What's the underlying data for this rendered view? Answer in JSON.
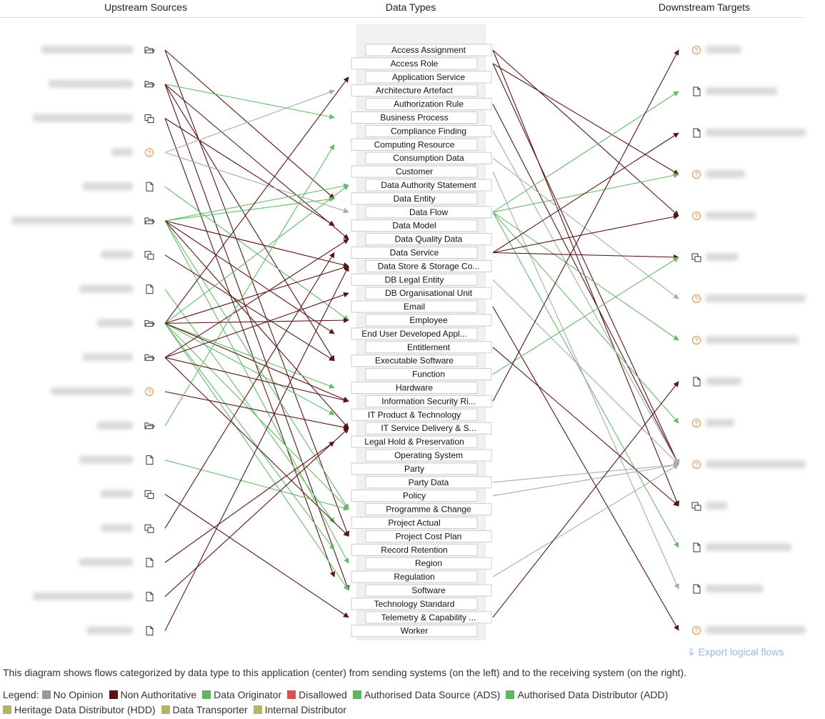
{
  "headers": {
    "upstream": "Upstream Sources",
    "data_types": "Data Types",
    "downstream": "Downstream Targets"
  },
  "colors": {
    "no_opinion": "#999999",
    "non_authoritative": "#5a1414",
    "authoritative": "#66bb6a",
    "disallowed": "#d9534f",
    "olive": "#b3b566"
  },
  "data_types": [
    "Access Assignment",
    "Access Role",
    "Application Service",
    "Architecture Artefact",
    "Authorization Rule",
    "Business Process",
    "Compliance Finding",
    "Computing Resource",
    "Consumption Data",
    "Customer",
    "Data Authority Statement",
    "Data Entity",
    "Data Flow",
    "Data Model",
    "Data Quality Data",
    "Data Service",
    "Data Store & Storage Co...",
    "DB Legal Entity",
    "DB Organisational Unit",
    "Email",
    "Employee",
    "End User Developed Appl...",
    "Entitlement",
    "Executable Software",
    "Function",
    "Hardware",
    "Information Security Ri...",
    "IT Product & Technology",
    "IT Service Delivery & S...",
    "Legal Hold & Preservation",
    "Operating System",
    "Party",
    "Party Data",
    "Policy",
    "Programme & Change",
    "Project Actual",
    "Project Cost Plan",
    "Record Retention",
    "Region",
    "Regulation",
    "Software",
    "Technology Standard",
    "Telemetry & Capability ...",
    "Worker"
  ],
  "upstream_icons": [
    "folder-icon",
    "folder-icon",
    "copy-icon",
    "question-icon",
    "file-icon",
    "folder-icon",
    "copy-icon",
    "file-icon",
    "folder-icon",
    "folder-icon",
    "question-icon",
    "folder-icon",
    "file-icon",
    "copy-icon",
    "copy-icon",
    "file-icon",
    "file-icon",
    "file-icon"
  ],
  "downstream_icons": [
    "question-icon",
    "file-icon",
    "file-icon",
    "question-icon",
    "question-icon",
    "copy-icon",
    "question-icon",
    "question-icon",
    "file-icon",
    "question-icon",
    "question-icon",
    "copy-icon",
    "file-icon",
    "file-icon",
    "question-icon"
  ],
  "flows_upstream": [
    {
      "s": 0,
      "t": 11,
      "r": "n"
    },
    {
      "s": 0,
      "t": 36,
      "r": "n"
    },
    {
      "s": 1,
      "t": 5,
      "r": "g"
    },
    {
      "s": 1,
      "t": 14,
      "r": "n"
    },
    {
      "s": 1,
      "t": 23,
      "r": "n"
    },
    {
      "s": 1,
      "t": 40,
      "r": "n"
    },
    {
      "s": 2,
      "t": 13,
      "r": "n"
    },
    {
      "s": 2,
      "t": 39,
      "r": "n"
    },
    {
      "s": 3,
      "t": 3,
      "r": "x"
    },
    {
      "s": 3,
      "t": 12,
      "r": "x"
    },
    {
      "s": 4,
      "t": 20,
      "r": "g"
    },
    {
      "s": 5,
      "t": 10,
      "r": "g"
    },
    {
      "s": 5,
      "t": 11,
      "r": "g"
    },
    {
      "s": 5,
      "t": 16,
      "r": "n"
    },
    {
      "s": 5,
      "t": 21,
      "r": "n"
    },
    {
      "s": 5,
      "t": 28,
      "r": "n"
    },
    {
      "s": 5,
      "t": 34,
      "r": "g"
    },
    {
      "s": 5,
      "t": 38,
      "r": "g"
    },
    {
      "s": 6,
      "t": 23,
      "r": "n"
    },
    {
      "s": 7,
      "t": 35,
      "r": "g"
    },
    {
      "s": 8,
      "t": 2,
      "r": "n"
    },
    {
      "s": 8,
      "t": 10,
      "r": "g"
    },
    {
      "s": 8,
      "t": 16,
      "r": "n"
    },
    {
      "s": 8,
      "t": 20,
      "r": "n"
    },
    {
      "s": 8,
      "t": 25,
      "r": "g"
    },
    {
      "s": 8,
      "t": 27,
      "r": "g"
    },
    {
      "s": 8,
      "t": 34,
      "r": "g"
    },
    {
      "s": 8,
      "t": 37,
      "r": "g"
    },
    {
      "s": 8,
      "t": 40,
      "r": "g"
    },
    {
      "s": 8,
      "t": 26,
      "r": "n"
    },
    {
      "s": 9,
      "t": 14,
      "r": "n"
    },
    {
      "s": 9,
      "t": 18,
      "r": "n"
    },
    {
      "s": 9,
      "t": 26,
      "r": "n"
    },
    {
      "s": 9,
      "t": 36,
      "r": "n"
    },
    {
      "s": 10,
      "t": 28,
      "r": "n"
    },
    {
      "s": 11,
      "t": 7,
      "r": "g"
    },
    {
      "s": 12,
      "t": 34,
      "r": "g"
    },
    {
      "s": 13,
      "t": 42,
      "r": "n"
    },
    {
      "s": 14,
      "t": 15,
      "r": "n"
    },
    {
      "s": 15,
      "t": 29,
      "r": "n"
    },
    {
      "s": 16,
      "t": 28,
      "r": "n"
    },
    {
      "s": 17,
      "t": 16,
      "r": "n"
    }
  ],
  "flows_downstream": [
    {
      "s": 0,
      "t": 4,
      "r": "n"
    },
    {
      "s": 0,
      "t": 11,
      "r": "n"
    },
    {
      "s": 1,
      "t": 3,
      "r": "n"
    },
    {
      "s": 1,
      "t": 10,
      "r": "n"
    },
    {
      "s": 4,
      "t": 10,
      "r": "n"
    },
    {
      "s": 6,
      "t": 10,
      "r": "x"
    },
    {
      "s": 8,
      "t": 6,
      "r": "x"
    },
    {
      "s": 9,
      "t": 13,
      "r": "x"
    },
    {
      "s": 12,
      "t": 1,
      "r": "g"
    },
    {
      "s": 12,
      "t": 3,
      "r": "g"
    },
    {
      "s": 12,
      "t": 7,
      "r": "g"
    },
    {
      "s": 12,
      "t": 9,
      "r": "g"
    },
    {
      "s": 12,
      "t": 12,
      "r": "g"
    },
    {
      "s": 15,
      "t": 2,
      "r": "n"
    },
    {
      "s": 15,
      "t": 4,
      "r": "n"
    },
    {
      "s": 15,
      "t": 5,
      "r": "n"
    },
    {
      "s": 17,
      "t": 10,
      "r": "x"
    },
    {
      "s": 19,
      "t": 14,
      "r": "n"
    },
    {
      "s": 22,
      "t": 11,
      "r": "n"
    },
    {
      "s": 24,
      "t": 5,
      "r": "g"
    },
    {
      "s": 26,
      "t": 0,
      "r": "n"
    },
    {
      "s": 32,
      "t": 10,
      "r": "x"
    },
    {
      "s": 33,
      "t": 10,
      "r": "x"
    },
    {
      "s": 39,
      "t": 10,
      "r": "x"
    },
    {
      "s": 42,
      "t": 8,
      "r": "n"
    }
  ],
  "export_label": "⇓ Export logical flows",
  "description": "This diagram shows flows categorized by data type to this application (center) from sending systems (on the left) and to the receiving system (on the right).",
  "legend": {
    "title": "Legend:",
    "items": [
      {
        "label": "No Opinion",
        "color": "#999999"
      },
      {
        "label": "Non Authoritative",
        "color": "#5a1414"
      },
      {
        "label": "Data Originator",
        "color": "#5cb85c"
      },
      {
        "label": "Disallowed",
        "color": "#d9534f"
      },
      {
        "label": "Authorised Data Source (ADS)",
        "color": "#5cb85c"
      },
      {
        "label": "Authorised Data Distributor (ADD)",
        "color": "#5cb85c"
      },
      {
        "label": "Heritage Data Distributor (HDD)",
        "color": "#b3b566"
      },
      {
        "label": "Data Transporter",
        "color": "#b3b566"
      },
      {
        "label": "Internal Distributor",
        "color": "#b3b566"
      }
    ]
  }
}
